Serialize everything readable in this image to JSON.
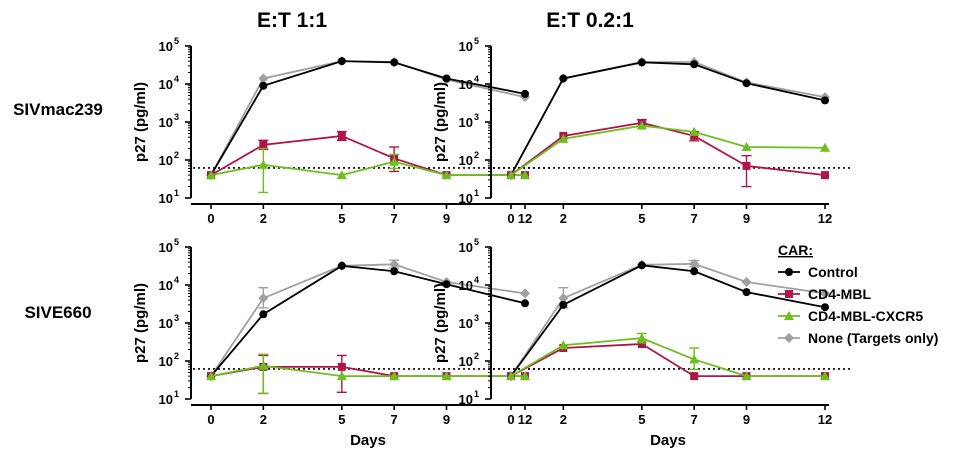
{
  "chart_data": {
    "type": "line",
    "column_titles": [
      "E:T 1:1",
      "E:T 0.2:1"
    ],
    "row_titles": [
      "SIVmac239",
      "SIVE660"
    ],
    "ylabel": "p27 (pg/ml)",
    "xlabel": "Days",
    "x": [
      0,
      2,
      5,
      7,
      9,
      12
    ],
    "x_ticks": [
      "0",
      "2",
      "5",
      "7",
      "9",
      "12"
    ],
    "y_scale": "log",
    "ylim": [
      10,
      100000
    ],
    "y_ticks": [
      {
        "base": "10",
        "exp": "1"
      },
      {
        "base": "10",
        "exp": "2"
      },
      {
        "base": "10",
        "exp": "3"
      },
      {
        "base": "10",
        "exp": "4"
      },
      {
        "base": "10",
        "exp": "5"
      }
    ],
    "detection_limit": 62,
    "legend": {
      "title": "CAR:",
      "entries": [
        {
          "name": "Control",
          "color": "#000000",
          "marker": "circle"
        },
        {
          "name": "CD4-MBL",
          "color": "#b0154a",
          "marker": "square"
        },
        {
          "name": "CD4-MBL-CXCR5",
          "color": "#6cbf1e",
          "marker": "triangle"
        },
        {
          "name": "None (Targets only)",
          "color": "#a0a0a0",
          "marker": "diamond"
        }
      ]
    },
    "panels": [
      {
        "row": 0,
        "col": 0,
        "series": [
          {
            "name": "None (Targets only)",
            "values": [
              40,
              14000,
              40000,
              38000,
              13000,
              4500
            ],
            "err": [
              null,
              null,
              null,
              null,
              null,
              null
            ]
          },
          {
            "name": "Control",
            "values": [
              40,
              9000,
              40000,
              37000,
              14000,
              5500
            ],
            "err": [
              null,
              null,
              null,
              null,
              null,
              null
            ]
          },
          {
            "name": "CD4-MBL",
            "values": [
              40,
              250,
              430,
              110,
              40,
              40
            ],
            "err": [
              null,
              [
                190,
                330
              ],
              [
                330,
                560
              ],
              [
                50,
                220
              ],
              null,
              null
            ]
          },
          {
            "name": "CD4-MBL-CXCR5",
            "values": [
              40,
              75,
              40,
              90,
              40,
              40
            ],
            "err": [
              null,
              [
                14,
                200
              ],
              null,
              [
                60,
                140
              ],
              null,
              null
            ]
          }
        ]
      },
      {
        "row": 0,
        "col": 1,
        "series": [
          {
            "name": "None (Targets only)",
            "values": [
              40,
              14000,
              38000,
              38000,
              11000,
              4500
            ],
            "err": [
              null,
              null,
              null,
              null,
              null,
              null
            ]
          },
          {
            "name": "Control",
            "values": [
              40,
              14000,
              37000,
              33000,
              10500,
              3700
            ],
            "err": [
              null,
              null,
              null,
              null,
              null,
              null
            ]
          },
          {
            "name": "CD4-MBL",
            "values": [
              40,
              430,
              950,
              430,
              70,
              40
            ],
            "err": [
              null,
              null,
              [
                760,
                1150
              ],
              [
                320,
                560
              ],
              [
                20,
                130
              ],
              null
            ]
          },
          {
            "name": "CD4-MBL-CXCR5",
            "values": [
              40,
              360,
              800,
              550,
              220,
              210
            ],
            "err": [
              null,
              null,
              null,
              null,
              null,
              null
            ]
          }
        ]
      },
      {
        "row": 1,
        "col": 0,
        "series": [
          {
            "name": "None (Targets only)",
            "values": [
              40,
              4500,
              32000,
              35000,
              12000,
              6000
            ],
            "err": [
              null,
              [
                2500,
                8500
              ],
              null,
              [
                28000,
                45000
              ],
              null,
              null
            ]
          },
          {
            "name": "Control",
            "values": [
              40,
              1700,
              32000,
              23000,
              10500,
              3300
            ],
            "err": [
              null,
              null,
              null,
              null,
              null,
              null
            ]
          },
          {
            "name": "CD4-MBL",
            "values": [
              40,
              70,
              70,
              40,
              40,
              40
            ],
            "err": [
              null,
              [
                14,
                140
              ],
              [
                15,
                140
              ],
              null,
              null,
              null
            ]
          },
          {
            "name": "CD4-MBL-CXCR5",
            "values": [
              40,
              75,
              40,
              40,
              40,
              40
            ],
            "err": [
              null,
              [
                14,
                150
              ],
              null,
              null,
              null,
              null
            ]
          }
        ]
      },
      {
        "row": 1,
        "col": 1,
        "series": [
          {
            "name": "None (Targets only)",
            "values": [
              40,
              4500,
              34000,
              36000,
              12000,
              6000
            ],
            "err": [
              null,
              [
                2500,
                8500
              ],
              null,
              [
                30000,
                44000
              ],
              null,
              null
            ]
          },
          {
            "name": "Control",
            "values": [
              40,
              3000,
              33000,
              23000,
              6500,
              2600
            ],
            "err": [
              null,
              null,
              null,
              null,
              null,
              null
            ]
          },
          {
            "name": "CD4-MBL",
            "values": [
              40,
              220,
              280,
              40,
              40,
              40
            ],
            "err": [
              null,
              null,
              null,
              null,
              null,
              null
            ]
          },
          {
            "name": "CD4-MBL-CXCR5",
            "values": [
              40,
              260,
              400,
              110,
              40,
              40
            ],
            "err": [
              null,
              null,
              [
                300,
                530
              ],
              [
                60,
                220
              ],
              null,
              null
            ]
          }
        ]
      }
    ]
  }
}
